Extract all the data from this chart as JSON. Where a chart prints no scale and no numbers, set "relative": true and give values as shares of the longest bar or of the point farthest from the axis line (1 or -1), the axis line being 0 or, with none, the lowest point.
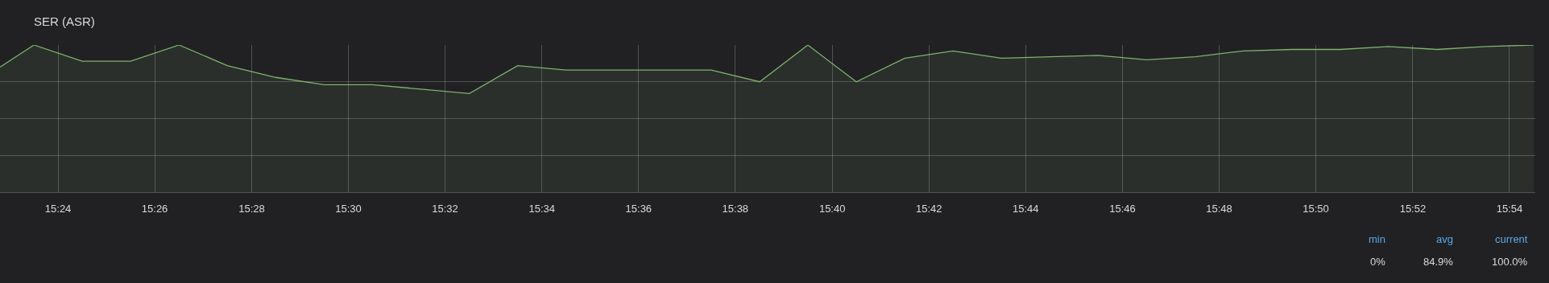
{
  "chart_data": {
    "type": "area",
    "title": "SER (ASR)",
    "relative": true,
    "x": [
      15.38,
      15.3917,
      15.4083,
      15.425,
      15.4417,
      15.4583,
      15.475,
      15.4917,
      15.5083,
      15.525,
      15.5417,
      15.5583,
      15.575,
      15.5917,
      15.6083,
      15.625,
      15.6417,
      15.6583,
      15.675,
      15.6917,
      15.7083,
      15.725,
      15.7417,
      15.7583,
      15.775,
      15.7917,
      15.8083,
      15.825,
      15.8417,
      15.8583,
      15.875,
      15.8917,
      15.9083
    ],
    "series": [
      {
        "color": "#7eb26d",
        "values": [
          0.85,
          1.0,
          0.89,
          0.89,
          1.0,
          0.86,
          0.78,
          0.73,
          0.73,
          0.7,
          0.67,
          0.86,
          0.83,
          0.83,
          0.83,
          0.83,
          0.75,
          1.0,
          0.75,
          0.91,
          0.96,
          0.91,
          0.92,
          0.93,
          0.9,
          0.92,
          0.96,
          0.97,
          0.97,
          0.99,
          0.97,
          0.99,
          1.0
        ]
      }
    ],
    "xlim": [
      15.38,
      15.9089
    ],
    "xticks": [
      {
        "value": 15.4,
        "label": "15:24"
      },
      {
        "value": 15.4333,
        "label": "15:26"
      },
      {
        "value": 15.4667,
        "label": "15:28"
      },
      {
        "value": 15.5,
        "label": "15:30"
      },
      {
        "value": 15.5333,
        "label": "15:32"
      },
      {
        "value": 15.5667,
        "label": "15:34"
      },
      {
        "value": 15.6,
        "label": "15:36"
      },
      {
        "value": 15.6333,
        "label": "15:38"
      },
      {
        "value": 15.6667,
        "label": "15:40"
      },
      {
        "value": 15.7,
        "label": "15:42"
      },
      {
        "value": 15.7333,
        "label": "15:44"
      },
      {
        "value": 15.7667,
        "label": "15:46"
      },
      {
        "value": 15.8,
        "label": "15:48"
      },
      {
        "value": 15.8333,
        "label": "15:50"
      },
      {
        "value": 15.8667,
        "label": "15:52"
      },
      {
        "value": 15.9,
        "label": "15:54"
      }
    ],
    "grid": true,
    "annotations": [
      "min",
      "avg",
      "current",
      "0%",
      "84.9%",
      "100.0%"
    ]
  }
}
